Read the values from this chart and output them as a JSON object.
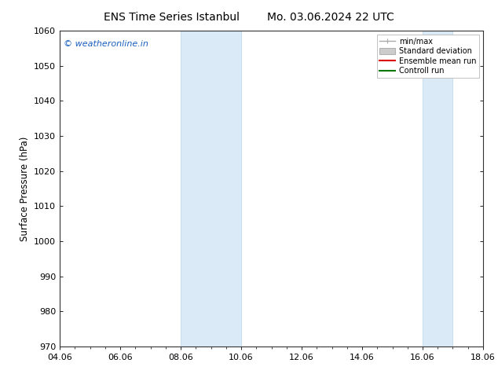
{
  "title_left": "ENS Time Series Istanbul",
  "title_right": "Mo. 03.06.2024 22 UTC",
  "ylabel": "Surface Pressure (hPa)",
  "ylim": [
    970,
    1060
  ],
  "yticks": [
    970,
    980,
    990,
    1000,
    1010,
    1020,
    1030,
    1040,
    1050,
    1060
  ],
  "xtick_labels": [
    "04.06",
    "06.06",
    "08.06",
    "10.06",
    "12.06",
    "14.06",
    "16.06",
    "18.06"
  ],
  "xtick_positions": [
    0,
    2,
    4,
    6,
    8,
    10,
    12,
    14
  ],
  "xmin": 0,
  "xmax": 14,
  "shaded_bands": [
    {
      "x_start": 4.0,
      "x_end": 6.0
    },
    {
      "x_start": 12.0,
      "x_end": 13.0
    }
  ],
  "shade_color": "#daeaf7",
  "shade_edge_color": "#b8d4ec",
  "watermark_text": "© weatheronline.in",
  "watermark_color": "#1a5fbf",
  "background_color": "#ffffff",
  "plot_bg_color": "#f8f8f8",
  "legend_entries": [
    {
      "label": "min/max",
      "color": "#aaaaaa",
      "lw": 1.0
    },
    {
      "label": "Standard deviation",
      "color": "#cccccc",
      "lw": 5
    },
    {
      "label": "Ensemble mean run",
      "color": "#dd0000",
      "lw": 1.5
    },
    {
      "label": "Controll run",
      "color": "#007700",
      "lw": 1.5
    }
  ],
  "title_fontsize": 10,
  "tick_fontsize": 8,
  "ylabel_fontsize": 8.5,
  "watermark_fontsize": 8
}
